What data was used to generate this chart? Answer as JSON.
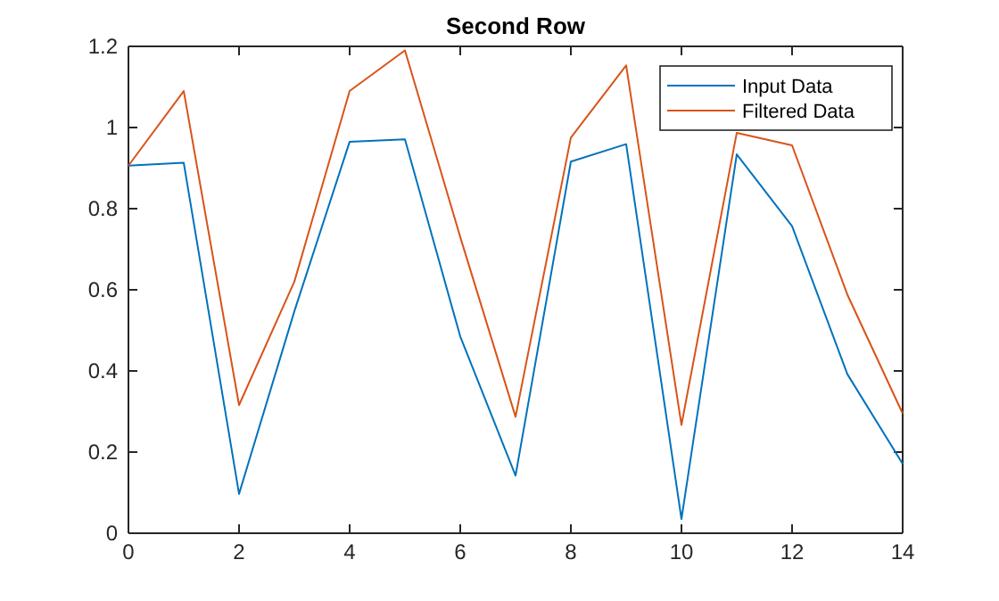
{
  "chart_data": {
    "type": "line",
    "title": "Second Row",
    "x": [
      0,
      1,
      2,
      3,
      4,
      5,
      6,
      7,
      8,
      9,
      10,
      11,
      12,
      13,
      14
    ],
    "series": [
      {
        "name": "Input Data",
        "color": "#0072bd",
        "values": [
          0.906,
          0.913,
          0.097,
          0.547,
          0.965,
          0.971,
          0.485,
          0.142,
          0.916,
          0.959,
          0.035,
          0.934,
          0.757,
          0.392,
          0.171
        ]
      },
      {
        "name": "Filtered Data",
        "color": "#d95319",
        "values": [
          0.906,
          1.09,
          0.316,
          0.62,
          1.09,
          1.19,
          0.73,
          0.287,
          0.975,
          1.153,
          0.267,
          0.987,
          0.956,
          0.588,
          0.295
        ]
      }
    ],
    "xlim": [
      0,
      14
    ],
    "xticks": [
      0,
      2,
      4,
      6,
      8,
      10,
      12,
      14
    ],
    "ylim": [
      0,
      1.2
    ],
    "yticks": [
      0,
      0.2,
      0.4,
      0.6,
      0.8,
      1,
      1.2
    ],
    "legend": "top right",
    "grid": false,
    "marker": "none",
    "line_style": "solid"
  }
}
